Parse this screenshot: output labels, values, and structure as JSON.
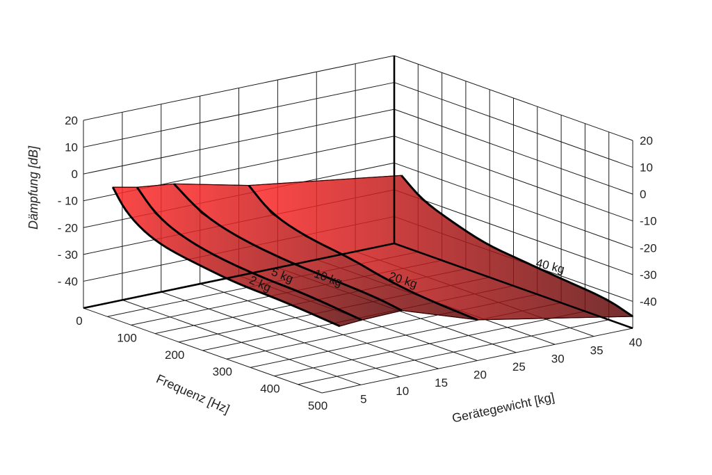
{
  "chart_data": {
    "type": "surface",
    "title": "",
    "zlabel": "Dämpfung [dB]",
    "xlabel": "Frequenz [Hz]",
    "ylabel": "Gerätegewicht [kg]",
    "xlim": [
      0,
      500
    ],
    "ylim": [
      0,
      40
    ],
    "zlim": [
      -50,
      20
    ],
    "z_ticks": [
      "20",
      "10",
      "0",
      "- 10",
      "- 20",
      "- 30",
      "- 40"
    ],
    "z_ticks_right": [
      "20",
      "10",
      "0",
      "-10",
      "-20",
      "-30",
      "-40"
    ],
    "z_tick_values": [
      20,
      10,
      0,
      -10,
      -20,
      -30,
      -40
    ],
    "x_ticks": [
      "0",
      "100",
      "200",
      "300",
      "400",
      "500"
    ],
    "x_tick_values": [
      0,
      100,
      200,
      300,
      400,
      500
    ],
    "y_ticks": [
      "5",
      "10",
      "15",
      "20",
      "25",
      "30",
      "35",
      "40"
    ],
    "y_tick_values": [
      5,
      10,
      15,
      20,
      25,
      30,
      35,
      40
    ],
    "grid": true,
    "surface_color_light": "#ff2a2a",
    "surface_color_dark": "#5e0d0d",
    "series": [
      {
        "name": "2 kg",
        "weight": 2,
        "f": [
          29,
          55,
          94,
          142,
          215,
          288,
          386,
          505
        ],
        "db": [
          -4.3,
          -11.4,
          -16.7,
          -20,
          -22,
          -23.7,
          -24.2,
          -26
        ]
      },
      {
        "name": "5 kg",
        "weight": 5,
        "f": [
          31,
          69,
          119,
          191,
          287,
          385,
          502
        ],
        "db": [
          -6,
          -13.4,
          -18,
          -21.2,
          -23,
          -23.5,
          -25.7
        ]
      },
      {
        "name": "10 kg",
        "weight": 10,
        "f": [
          27,
          85,
          158,
          255,
          352,
          449,
          505
        ],
        "db": [
          -8,
          -15.4,
          -19.3,
          -21.7,
          -22.6,
          -23.5,
          -25
        ]
      },
      {
        "name": "20 kg",
        "weight": 20,
        "f": [
          21,
          68,
          140,
          238,
          300,
          383,
          500
        ],
        "db": [
          -15,
          -22.5,
          -26.5,
          -28.8,
          -31.5,
          -33.7,
          -34.8
        ]
      },
      {
        "name": "40 kg",
        "weight": 40,
        "f": [
          15,
          58,
          117,
          190,
          262,
          350,
          446,
          500
        ],
        "db": [
          -23.7,
          -30,
          -34,
          -38,
          -39.4,
          -41,
          -42.5,
          -45.6
        ]
      }
    ]
  }
}
